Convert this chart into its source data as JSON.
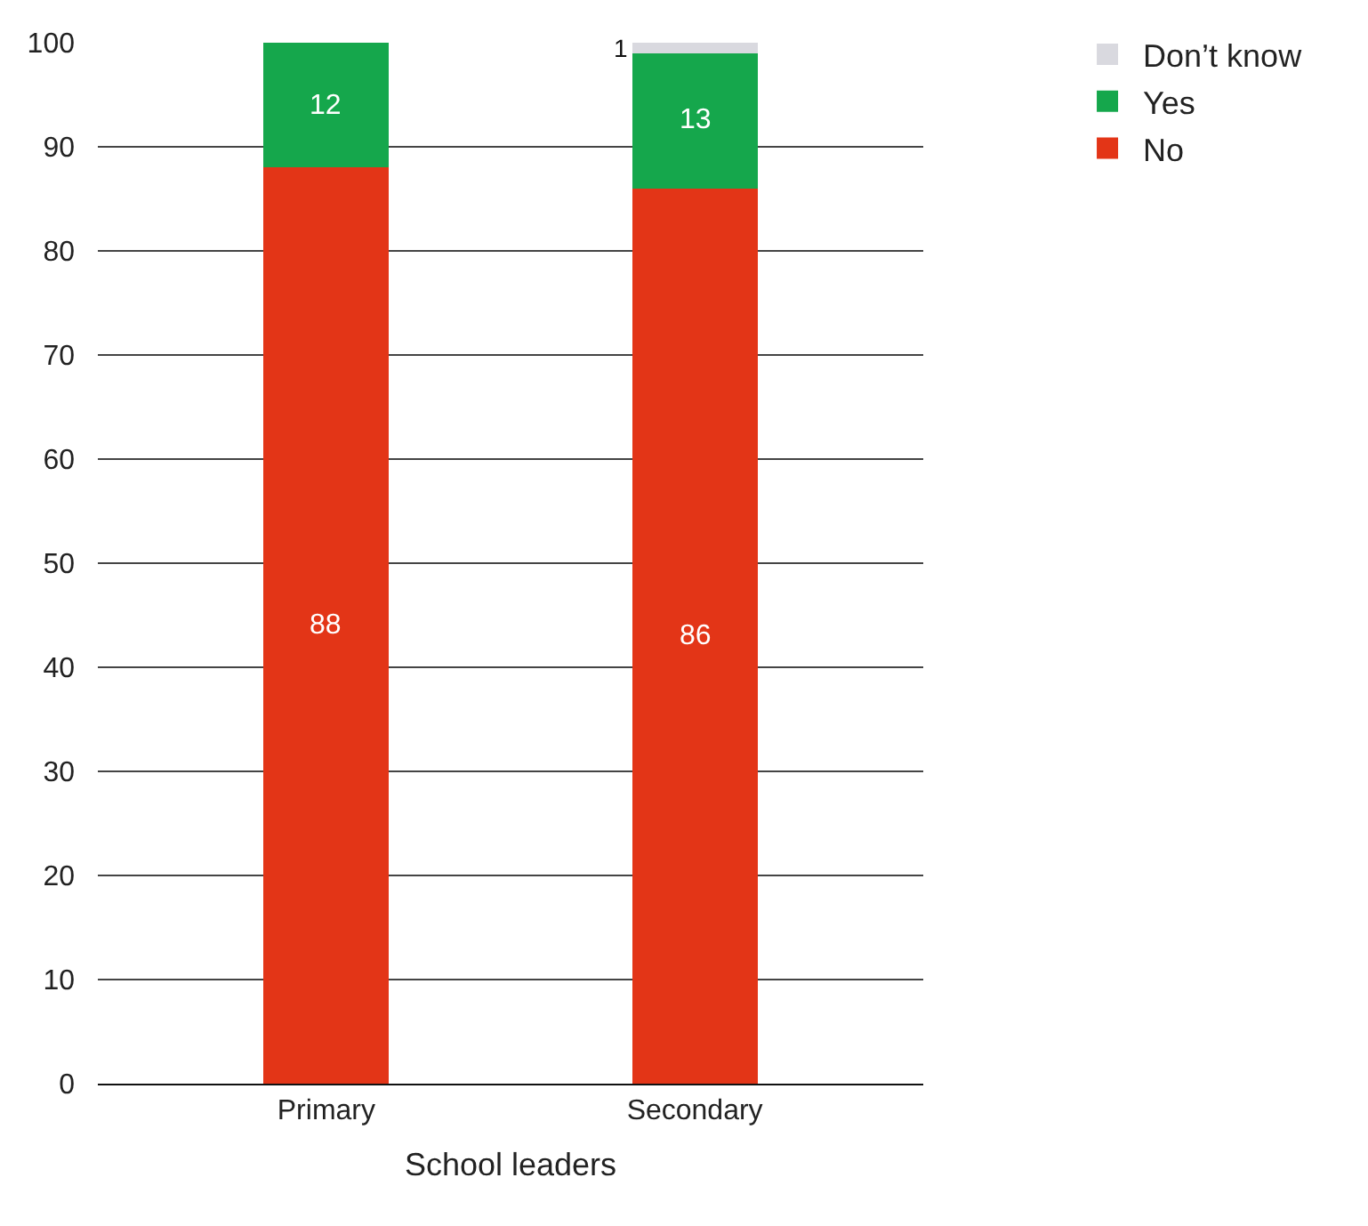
{
  "chart_data": {
    "type": "bar",
    "stacked": true,
    "xlabel": "School leaders",
    "categories": [
      "Primary",
      "Secondary"
    ],
    "series": [
      {
        "name": "No",
        "color": "#e33517",
        "values": [
          88,
          86
        ],
        "value_labels": [
          "88",
          "86"
        ]
      },
      {
        "name": "Yes",
        "color": "#15a74c",
        "values": [
          12,
          13
        ],
        "value_labels": [
          "12",
          "13"
        ]
      },
      {
        "name": "Don’t know",
        "color": "#d9d9df",
        "values": [
          0,
          1
        ],
        "value_labels": [
          null,
          "1"
        ]
      }
    ],
    "ylim": [
      0,
      100
    ],
    "yticks": [
      0,
      10,
      20,
      30,
      40,
      50,
      60,
      70,
      80,
      90,
      100
    ],
    "grid": "y",
    "legend": "top right"
  }
}
